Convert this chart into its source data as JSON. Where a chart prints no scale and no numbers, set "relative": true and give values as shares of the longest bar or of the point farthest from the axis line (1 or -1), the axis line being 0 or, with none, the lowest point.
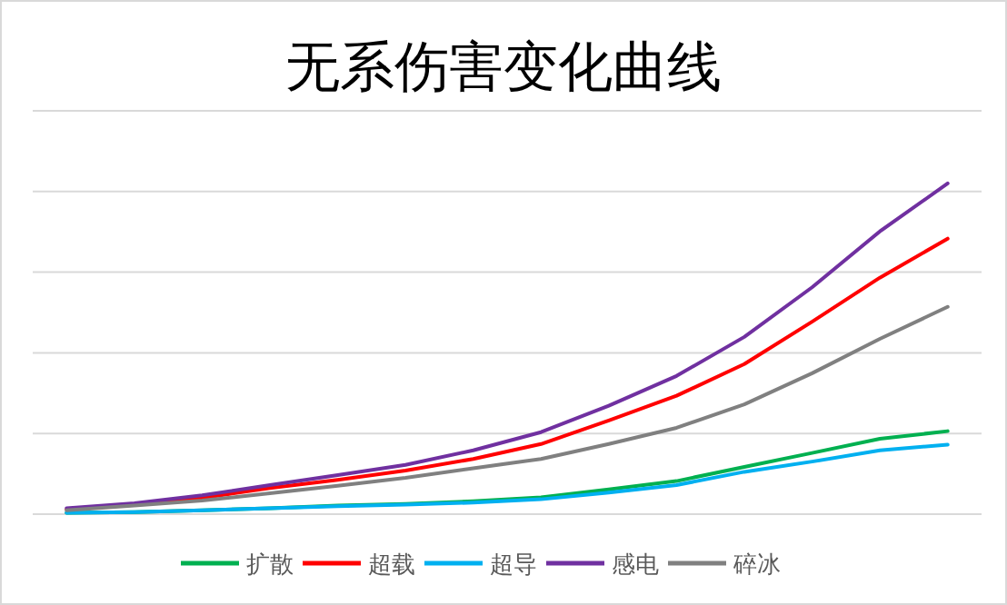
{
  "chart_data": {
    "type": "line",
    "title": "无系伤害变化曲线",
    "relative": true,
    "grid": "y",
    "legend": "bottom",
    "marker": "none",
    "line_style": "solid",
    "categories": [
      null,
      null,
      null,
      null,
      null,
      null,
      null,
      null,
      null,
      null,
      null,
      null,
      null,
      null
    ],
    "series": [
      {
        "name": "扩散",
        "color": "#00b050",
        "values": [
          0.004,
          0.006,
          0.012,
          0.018,
          0.026,
          0.031,
          0.039,
          0.051,
          0.075,
          0.1,
          0.143,
          0.185,
          0.228,
          0.251
        ]
      },
      {
        "name": "超载",
        "color": "#ff0000",
        "values": [
          0.014,
          0.029,
          0.049,
          0.079,
          0.104,
          0.132,
          0.167,
          0.212,
          0.283,
          0.358,
          0.454,
          0.582,
          0.715,
          0.833
        ]
      },
      {
        "name": "超导",
        "color": "#00b0f0",
        "values": [
          0.004,
          0.006,
          0.012,
          0.018,
          0.024,
          0.029,
          0.035,
          0.045,
          0.065,
          0.088,
          0.128,
          0.159,
          0.193,
          0.21
        ]
      },
      {
        "name": "感电",
        "color": "#7030a0",
        "values": [
          0.018,
          0.033,
          0.057,
          0.088,
          0.118,
          0.149,
          0.193,
          0.248,
          0.328,
          0.418,
          0.536,
          0.686,
          0.855,
          1
        ]
      },
      {
        "name": "碎冰",
        "color": "#808080",
        "values": [
          0.012,
          0.026,
          0.041,
          0.063,
          0.086,
          0.11,
          0.139,
          0.167,
          0.212,
          0.261,
          0.332,
          0.426,
          0.53,
          0.627
        ]
      }
    ]
  }
}
